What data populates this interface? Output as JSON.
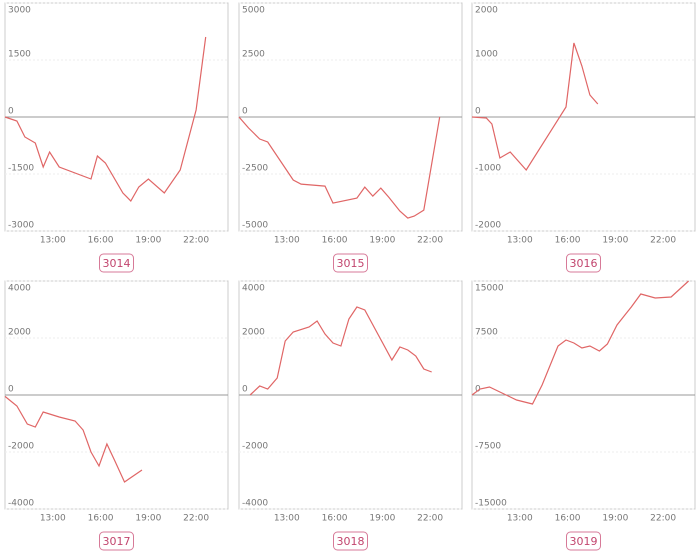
{
  "chart_data": [
    {
      "type": "line",
      "title": "3014",
      "color": "#e06666",
      "x": [
        10.0,
        10.75,
        11.25,
        11.9,
        12.4,
        12.8,
        13.4,
        15.4,
        15.8,
        16.3,
        17.4,
        17.9,
        18.4,
        19.0,
        20.0,
        21.0,
        22.0,
        22.6
      ],
      "values": [
        0,
        -105,
        -526,
        -684,
        -1316,
        -921,
        -1316,
        -1632,
        -1026,
        -1210,
        -2000,
        -2210,
        -1842,
        -1632,
        -2000,
        -1395,
        184,
        2105
      ],
      "xlim": [
        10,
        24
      ],
      "xticks": [
        {
          "value": 13,
          "label": "13:00"
        },
        {
          "value": 16,
          "label": "16:00"
        },
        {
          "value": 19,
          "label": "19:00"
        },
        {
          "value": 22,
          "label": "22:00"
        }
      ],
      "ylim": [
        -3000,
        3000
      ],
      "yticks": [
        3000,
        1500,
        0,
        -1500,
        -3000
      ],
      "grid": true
    },
    {
      "type": "line",
      "title": "3015",
      "color": "#e06666",
      "x": [
        10.0,
        10.6,
        11.3,
        11.8,
        13.4,
        13.9,
        15.4,
        15.9,
        17.4,
        17.9,
        18.4,
        18.9,
        19.4,
        20.1,
        20.6,
        21.0,
        21.6,
        22.6
      ],
      "values": [
        0,
        -483,
        -966,
        -1097,
        -2765,
        -2941,
        -3029,
        -3775,
        -3556,
        -3073,
        -3468,
        -3117,
        -3512,
        -4127,
        -4434,
        -4346,
        -4083,
        0
      ],
      "xlim": [
        10,
        24
      ],
      "xticks": [
        {
          "value": 13,
          "label": "13:00"
        },
        {
          "value": 16,
          "label": "16:00"
        },
        {
          "value": 19,
          "label": "19:00"
        },
        {
          "value": 22,
          "label": "22:00"
        }
      ],
      "ylim": [
        -5000,
        5000
      ],
      "yticks": [
        5000,
        2500,
        0,
        -2500,
        -5000
      ],
      "grid": true
    },
    {
      "type": "line",
      "title": "3016",
      "color": "#e06666",
      "x": [
        10.0,
        10.9,
        11.25,
        11.75,
        12.4,
        13.4,
        15.9,
        16.4,
        16.9,
        17.4,
        17.9
      ],
      "values": [
        0,
        -18,
        -123,
        -719,
        -614,
        -930,
        175,
        1298,
        895,
        386,
        228
      ],
      "xlim": [
        10,
        24
      ],
      "xticks": [
        {
          "value": 13,
          "label": "13:00"
        },
        {
          "value": 16,
          "label": "16:00"
        },
        {
          "value": 19,
          "label": "19:00"
        },
        {
          "value": 22,
          "label": "22:00"
        }
      ],
      "ylim": [
        -2000,
        2000
      ],
      "yticks": [
        2000,
        1000,
        0,
        -1000,
        -2000
      ],
      "grid": true
    },
    {
      "type": "line",
      "title": "3017",
      "color": "#e06666",
      "x": [
        10.0,
        10.75,
        11.4,
        11.9,
        12.4,
        13.4,
        14.4,
        14.9,
        15.4,
        15.9,
        16.4,
        16.9,
        17.5,
        18.6
      ],
      "values": [
        -50,
        -386,
        -1018,
        -1123,
        -597,
        -772,
        -912,
        -1228,
        -2000,
        -2492,
        -1720,
        -2317,
        -3054,
        -2633
      ],
      "xlim": [
        10,
        24
      ],
      "xticks": [
        {
          "value": 13,
          "label": "13:00"
        },
        {
          "value": 16,
          "label": "16:00"
        },
        {
          "value": 19,
          "label": "19:00"
        },
        {
          "value": 22,
          "label": "22:00"
        }
      ],
      "ylim": [
        -4000,
        4000
      ],
      "yticks": [
        4000,
        2000,
        0,
        -2000,
        -4000
      ],
      "grid": true
    },
    {
      "type": "line",
      "title": "3018",
      "color": "#e06666",
      "x": [
        10.7,
        11.3,
        11.8,
        12.4,
        12.9,
        13.4,
        14.4,
        14.9,
        15.4,
        15.9,
        16.4,
        16.9,
        17.4,
        17.9,
        19.6,
        20.1,
        20.6,
        21.1,
        21.6,
        22.1
      ],
      "values": [
        0,
        316,
        211,
        597,
        1895,
        2211,
        2387,
        2597,
        2141,
        1825,
        1720,
        2668,
        3089,
        2984,
        1229,
        1685,
        1580,
        1369,
        913,
        807
      ],
      "xlim": [
        10,
        24
      ],
      "xticks": [
        {
          "value": 13,
          "label": "13:00"
        },
        {
          "value": 16,
          "label": "16:00"
        },
        {
          "value": 19,
          "label": "19:00"
        },
        {
          "value": 22,
          "label": "22:00"
        }
      ],
      "ylim": [
        -4000,
        4000
      ],
      "yticks": [
        4000,
        2000,
        0,
        -2000,
        -4000
      ],
      "grid": true
    },
    {
      "type": "line",
      "title": "3019",
      "color": "#e06666",
      "x": [
        10.0,
        10.5,
        11.1,
        11.75,
        12.8,
        13.8,
        14.4,
        15.4,
        15.9,
        16.4,
        16.9,
        17.4,
        18.0,
        18.5,
        19.1,
        19.6,
        20.0,
        20.6,
        21.5,
        22.5,
        23.6
      ],
      "values": [
        0,
        790,
        1053,
        395,
        -658,
        -1184,
        1316,
        6448,
        7238,
        6843,
        6185,
        6448,
        5790,
        6711,
        9211,
        10527,
        11580,
        13291,
        12765,
        12896,
        15000
      ],
      "xlim": [
        10,
        24
      ],
      "xticks": [
        {
          "value": 13,
          "label": "13:00"
        },
        {
          "value": 16,
          "label": "16:00"
        },
        {
          "value": 19,
          "label": "19:00"
        },
        {
          "value": 22,
          "label": "22:00"
        }
      ],
      "ylim": [
        -15000,
        15000
      ],
      "yticks": [
        15000,
        7500,
        0,
        -7500,
        -15000
      ],
      "grid": true
    }
  ]
}
